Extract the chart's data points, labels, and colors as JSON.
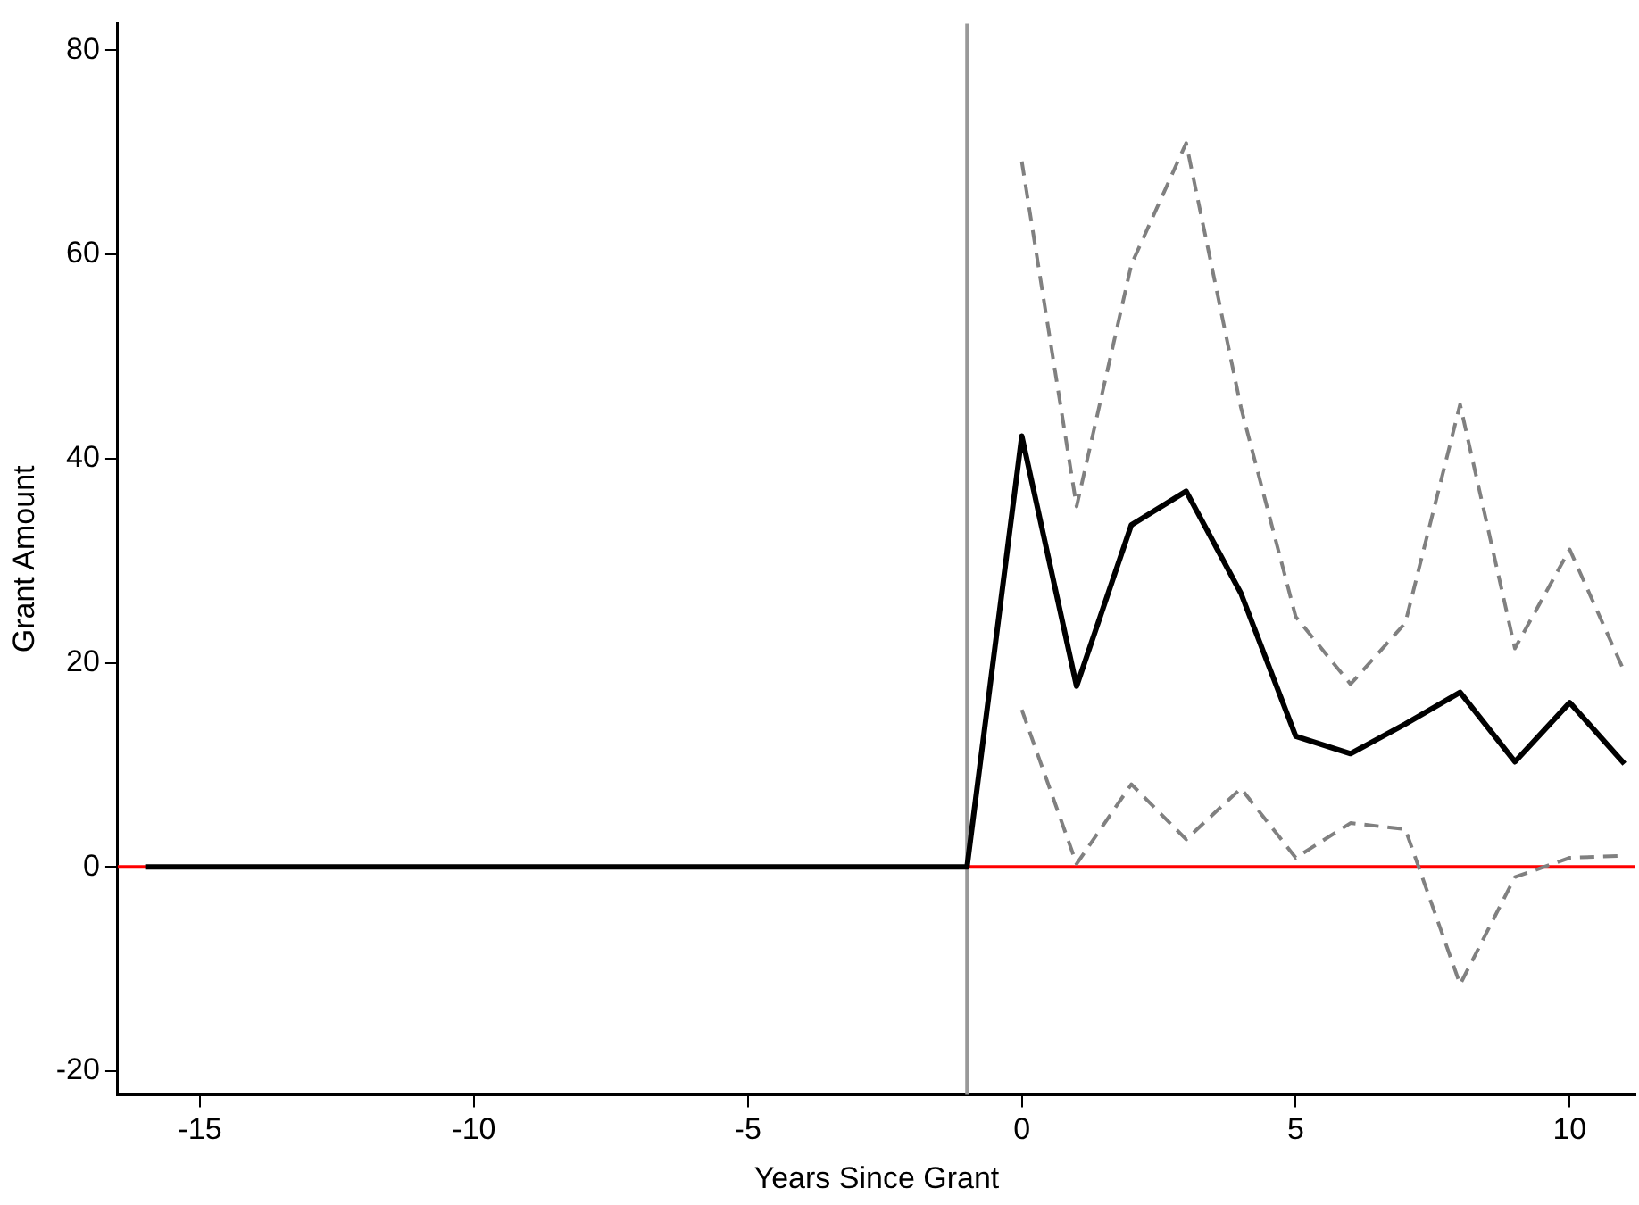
{
  "chart_data": {
    "type": "line",
    "xlabel": "Years Since Grant",
    "ylabel": "Grant Amount",
    "xlim": [
      -16.5,
      11.2
    ],
    "ylim": [
      -22.3,
      82.6
    ],
    "xticks": [
      -15,
      -10,
      -5,
      0,
      5,
      10
    ],
    "yticks": [
      -20,
      0,
      20,
      40,
      60,
      80
    ],
    "grid": false,
    "legend": false,
    "marker": "none",
    "series": [
      {
        "color": "#000000",
        "line_style": "solid",
        "x": [
          -16,
          -15,
          -14,
          -13,
          -12,
          -11,
          -10,
          -9,
          -8,
          -7,
          -6,
          -5,
          -4,
          -3,
          -2,
          -1,
          0,
          1,
          2,
          3,
          4,
          5,
          6,
          7,
          8,
          9,
          10,
          11
        ],
        "values": [
          0,
          0,
          0,
          0,
          0,
          0,
          0,
          0,
          0,
          0,
          0,
          0,
          0,
          0,
          0,
          0,
          42.2,
          17.7,
          33.5,
          36.8,
          26.8,
          12.8,
          11.1,
          14.0,
          17.1,
          10.3,
          16.1,
          10.1
        ]
      },
      {
        "color": "#808080",
        "line_style": "dashed",
        "x": [
          0,
          1,
          2,
          3,
          4,
          5,
          6,
          7,
          8,
          9,
          10,
          11
        ],
        "values": [
          69.1,
          35.3,
          59.0,
          70.9,
          45.0,
          24.5,
          17.9,
          23.9,
          45.3,
          21.4,
          31.1,
          19.1
        ]
      },
      {
        "color": "#808080",
        "line_style": "dashed",
        "x": [
          0,
          1,
          2,
          3,
          4,
          5,
          6,
          7,
          8,
          9,
          10,
          11
        ],
        "values": [
          15.4,
          0.3,
          8.1,
          2.7,
          7.7,
          0.9,
          4.3,
          3.7,
          -11.5,
          -1.0,
          0.9,
          1.1
        ]
      }
    ],
    "ref_lines": [
      {
        "axis": "y",
        "value": 0,
        "color": "#ff0000",
        "line_style": "solid"
      },
      {
        "axis": "x",
        "value": -1,
        "color": "#999999",
        "line_style": "solid"
      }
    ]
  }
}
